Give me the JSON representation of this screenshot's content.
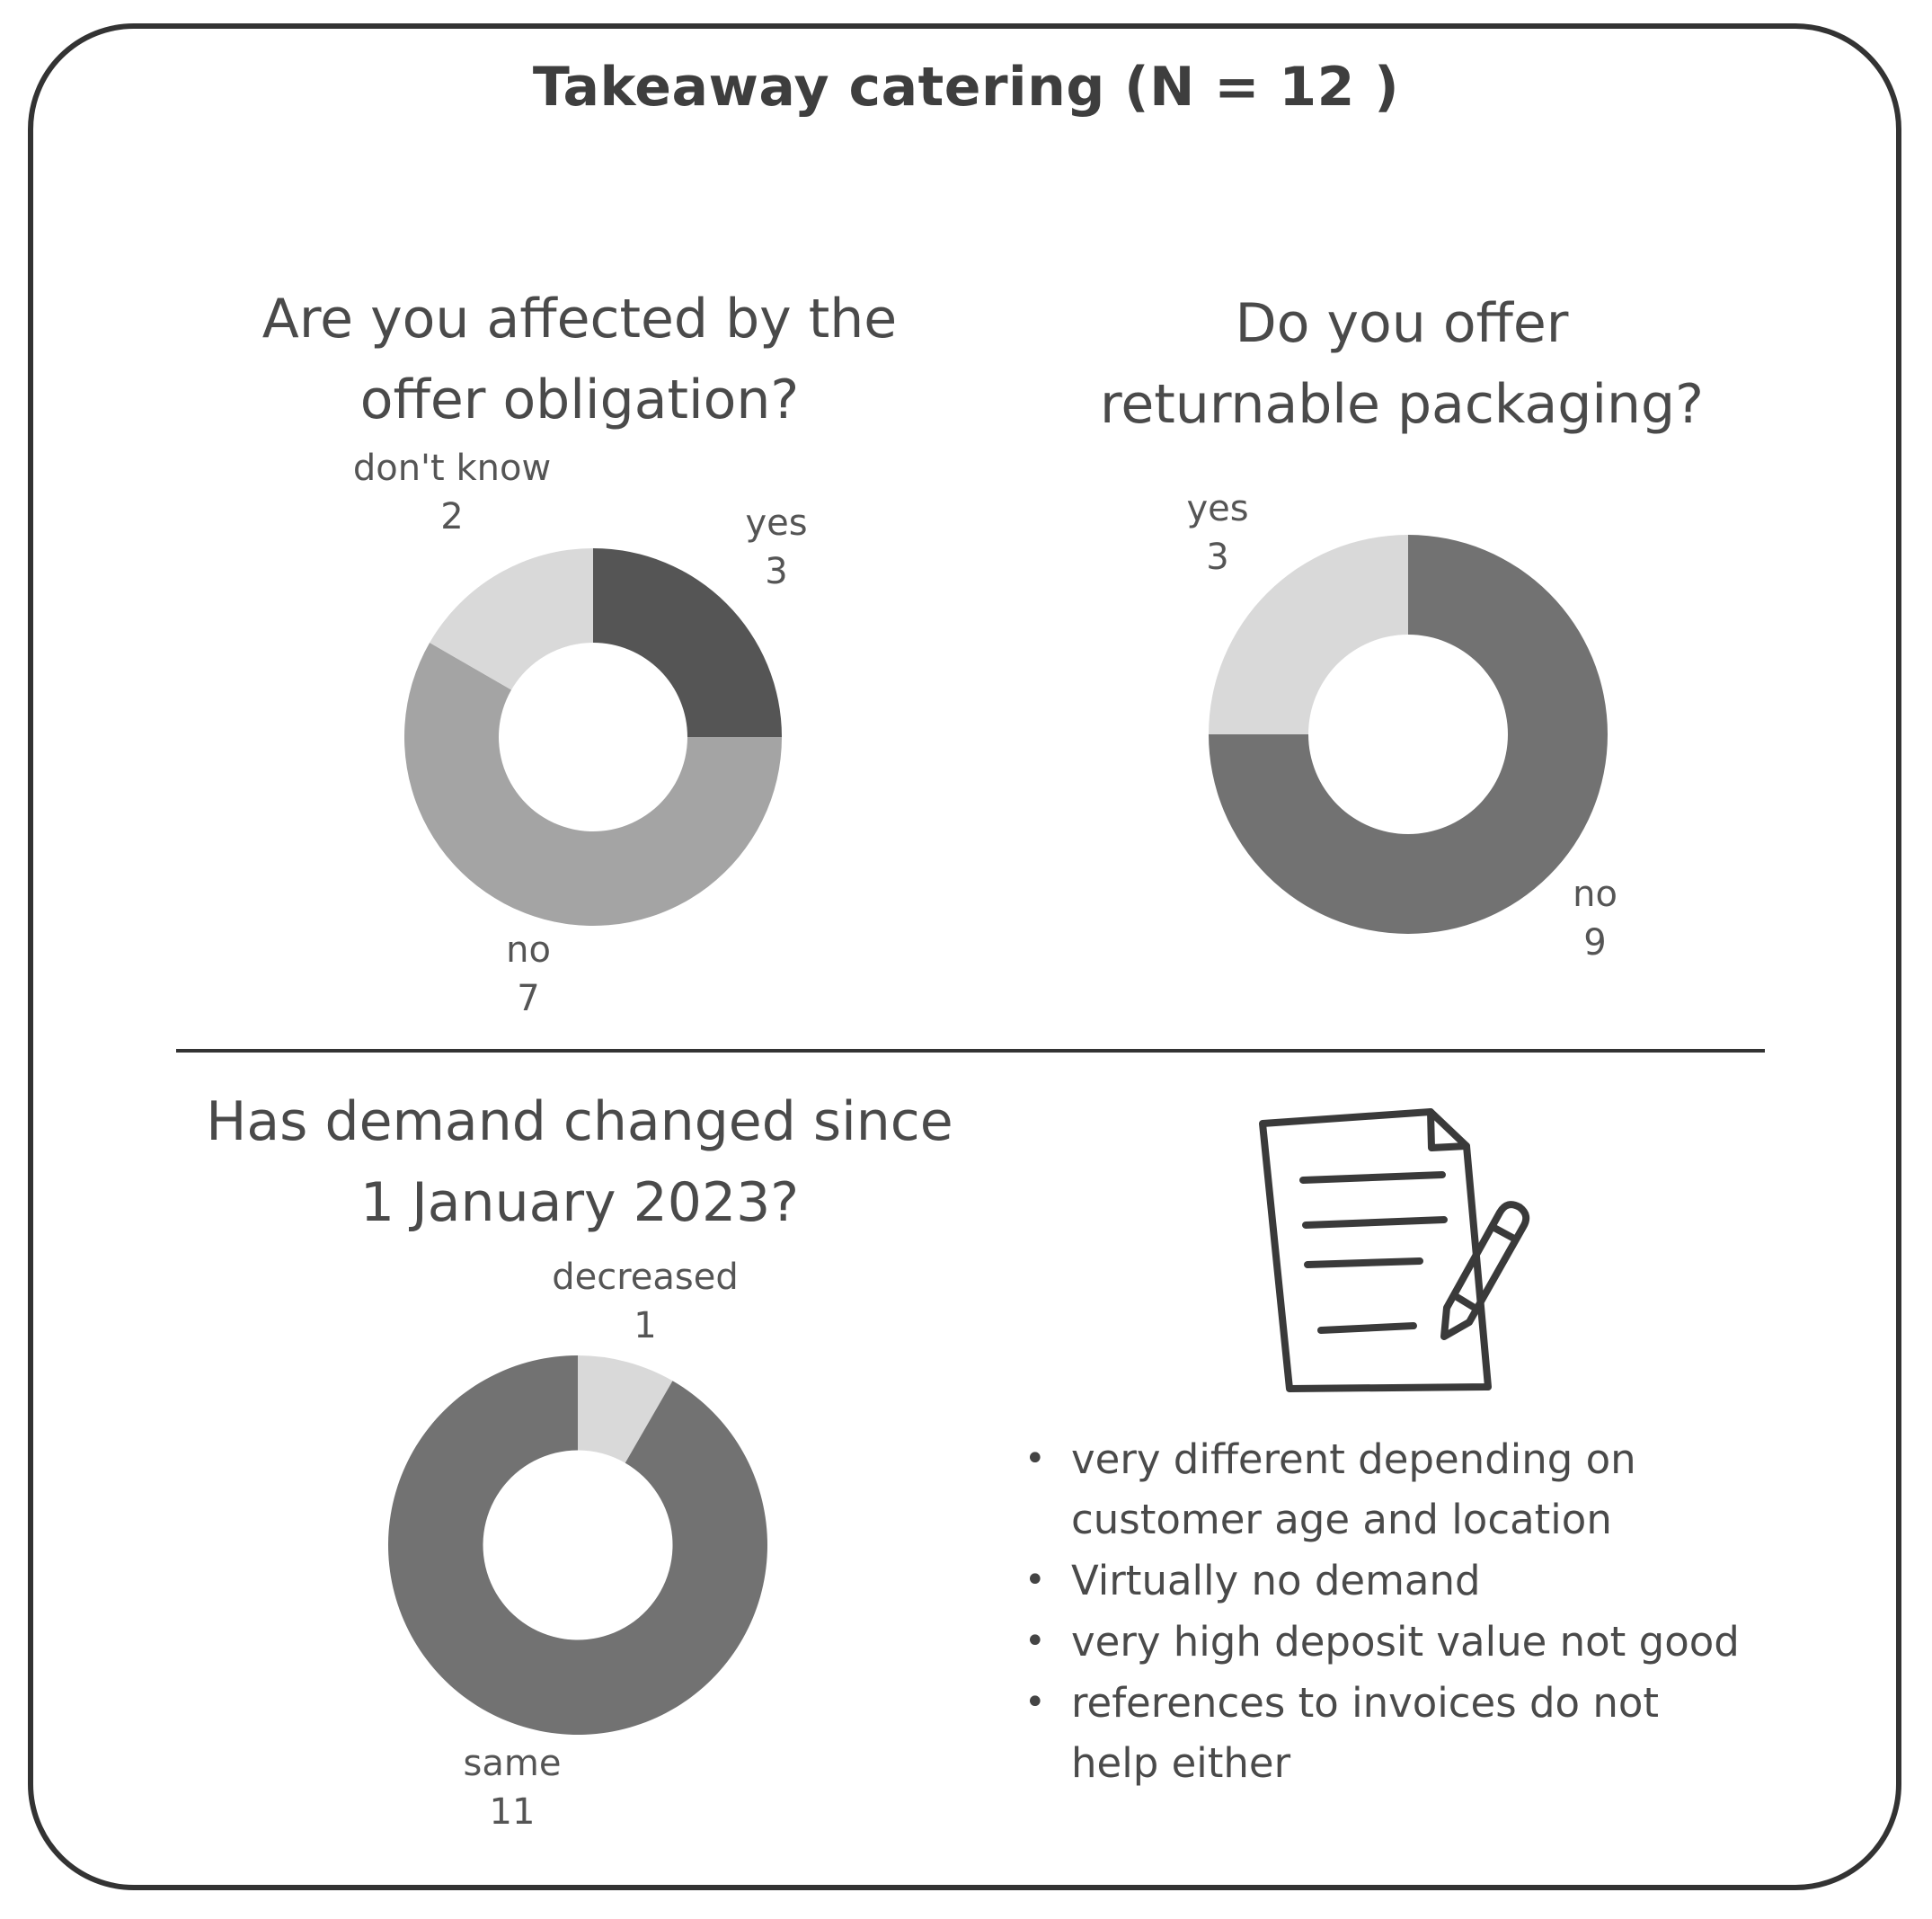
{
  "title": "Takeaway catering (N = 12 )",
  "colors": {
    "frame": "#333333",
    "text": "#444444",
    "very_dark": "#555555",
    "dark": "#727272",
    "mid": "#a4a4a4",
    "light": "#d9d9d9"
  },
  "icon": "document-with-pencil-icon",
  "chart_data": [
    {
      "type": "pie",
      "donut": true,
      "title": [
        "Are you affected by the",
        "offer obligation?"
      ],
      "slices": [
        {
          "label": "yes",
          "value": 3,
          "color": "#555555"
        },
        {
          "label": "no",
          "value": 7,
          "color": "#a4a4a4"
        },
        {
          "label": "don't know",
          "value": 2,
          "color": "#d9d9d9"
        }
      ]
    },
    {
      "type": "pie",
      "donut": true,
      "title": [
        "Do you offer",
        "returnable packaging?"
      ],
      "slices": [
        {
          "label": "no",
          "value": 9,
          "color": "#727272"
        },
        {
          "label": "yes",
          "value": 3,
          "color": "#d9d9d9"
        }
      ]
    },
    {
      "type": "pie",
      "donut": true,
      "title": [
        "Has demand changed since",
        "1 January 2023?"
      ],
      "slices": [
        {
          "label": "decreased",
          "value": 1,
          "color": "#d9d9d9"
        },
        {
          "label": "same",
          "value": 11,
          "color": "#727272"
        }
      ]
    }
  ],
  "notes": [
    [
      "very different depending on",
      "customer age and location"
    ],
    [
      "Virtually no demand"
    ],
    [
      "very high deposit value not good"
    ],
    [
      "references to invoices do not",
      "help either"
    ]
  ]
}
